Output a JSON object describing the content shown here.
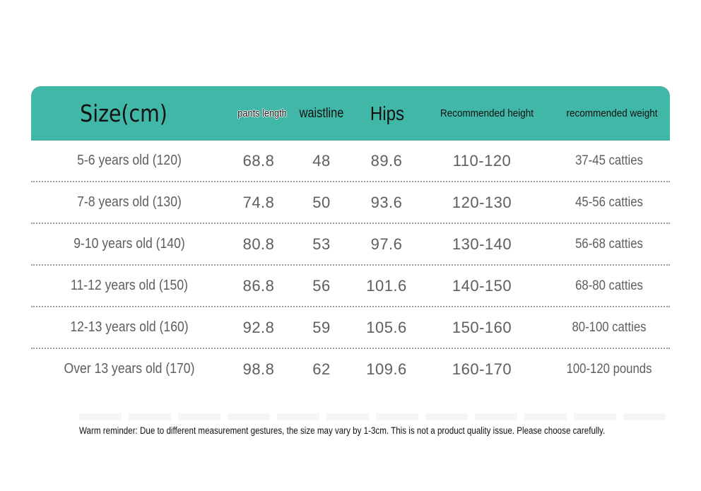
{
  "header": {
    "size": "Size(cm)",
    "pants_length": "pants length",
    "waistline": "waistline",
    "hips": "Hips",
    "recommended_height": "Recommended height",
    "recommended_weight": "recommended weight"
  },
  "rows": [
    {
      "size": "5-6 years old (120)",
      "pants_length": "68.8",
      "waistline": "48",
      "hips": "89.6",
      "height": "110-120",
      "weight": "37-45 catties"
    },
    {
      "size": "7-8 years old (130)",
      "pants_length": "74.8",
      "waistline": "50",
      "hips": "93.6",
      "height": "120-130",
      "weight": "45-56 catties"
    },
    {
      "size": "9-10 years old (140)",
      "pants_length": "80.8",
      "waistline": "53",
      "hips": "97.6",
      "height": "130-140",
      "weight": "56-68 catties"
    },
    {
      "size": "11-12 years old (150)",
      "pants_length": "86.8",
      "waistline": "56",
      "hips": "101.6",
      "height": "140-150",
      "weight": "68-80 catties"
    },
    {
      "size": "12-13 years old (160)",
      "pants_length": "92.8",
      "waistline": "59",
      "hips": "105.6",
      "height": "150-160",
      "weight": "80-100 catties"
    },
    {
      "size": "Over 13 years old (170)",
      "pants_length": "98.8",
      "waistline": "62",
      "hips": "109.6",
      "height": "160-170",
      "weight": "100-120 pounds"
    }
  ],
  "reminder": "Warm reminder: Due to different measurement gestures, the size may vary by 1-3cm. This is not a product quality issue. Please choose carefully.",
  "colors": {
    "header_bg": "#40b7a7",
    "text": "#5e5e5e"
  }
}
